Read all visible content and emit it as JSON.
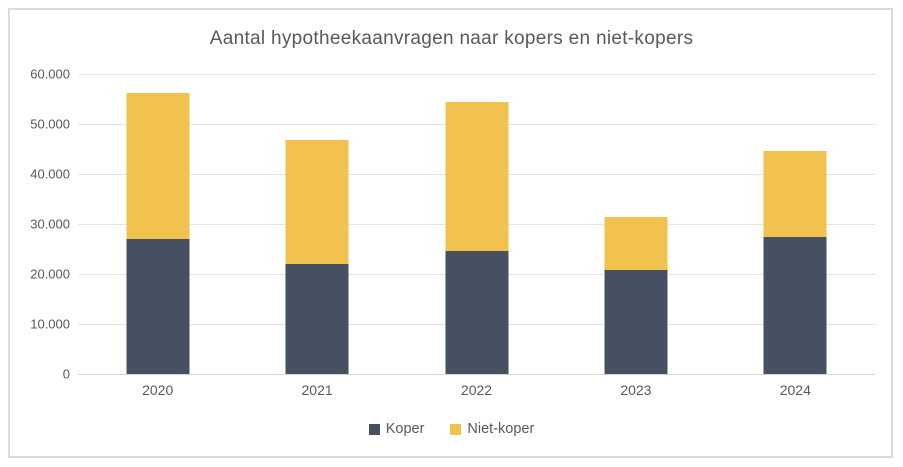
{
  "title": "Aantal hypotheekaanvragen naar kopers en niet-kopers",
  "colors": {
    "koper": "#475061",
    "niet_koper": "#f2c24e",
    "gridline": "#e4e4e4",
    "axis_text": "#595959",
    "frame_border": "#dcdcdc",
    "background": "#ffffff"
  },
  "chart_data": {
    "type": "bar",
    "stacked": true,
    "title": "Aantal hypotheekaanvragen naar kopers en niet-kopers",
    "categories": [
      "2020",
      "2021",
      "2022",
      "2023",
      "2024"
    ],
    "series": [
      {
        "name": "Koper",
        "color_key": "koper",
        "values": [
          27000,
          22100,
          24600,
          20800,
          27400
        ]
      },
      {
        "name": "Niet-koper",
        "color_key": "niet_koper",
        "values": [
          29200,
          24700,
          29900,
          10700,
          17200
        ]
      }
    ],
    "stack_totals": [
      56200,
      46800,
      54500,
      31500,
      44600
    ],
    "xlabel": "",
    "ylabel": "",
    "ylim": [
      0,
      60000
    ],
    "y_ticks": [
      {
        "value": 60000,
        "label": "60.000"
      },
      {
        "value": 50000,
        "label": "50.000"
      },
      {
        "value": 40000,
        "label": "40.000"
      },
      {
        "value": 30000,
        "label": "30.000"
      },
      {
        "value": 20000,
        "label": "20.000"
      },
      {
        "value": 10000,
        "label": "10.000"
      },
      {
        "value": 0,
        "label": "0"
      }
    ],
    "grid": true,
    "legend_position": "bottom"
  }
}
